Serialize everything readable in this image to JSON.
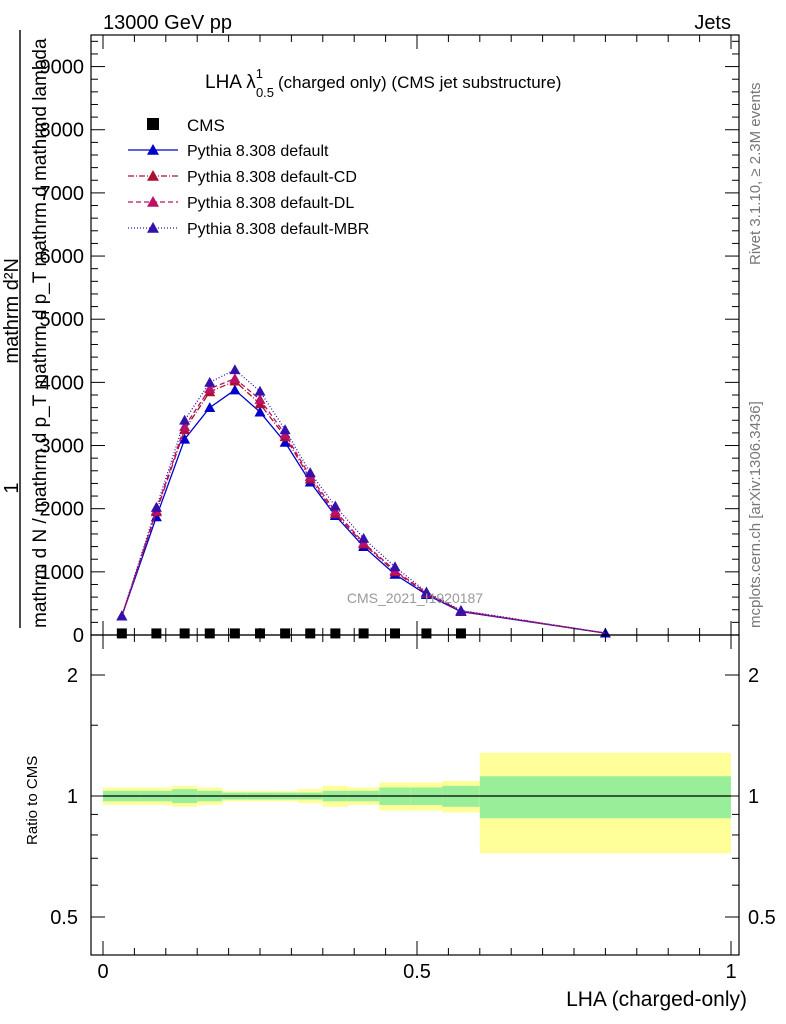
{
  "header": {
    "left": "13000 GeV pp",
    "right": "Jets"
  },
  "side_labels": {
    "rivet": "Rivet 3.1.10, ≥ 2.3M events",
    "mcplots": "mcplots.cern.ch [arXiv:1306.3436]"
  },
  "watermark": "CMS_2021_I1920187",
  "chart_data": [
    {
      "type": "line",
      "title": "LHA λ¹₀.₅ (charged only) (CMS jet substructure)",
      "title_parts": {
        "main": "LHA λ",
        "sup": "1",
        "sub": "0.5",
        "rest": "(charged only) (CMS jet substructure)"
      },
      "ylabel_num": "mathrm d²N",
      "ylabel_den": "mathrm d N / mathrm d p_T mathrm d p_T mathrm d lambda",
      "ylabel_one": "1",
      "ylabel_alt": "mathrm d N / mathrm d p_T mathrm d p_T mathrm d mathrmd lambda",
      "xlim": [
        0,
        1
      ],
      "ylim": [
        0,
        9500
      ],
      "y_ticks": [
        {
          "v": 0,
          "label": "0"
        },
        {
          "v": 1000,
          "label": "1000"
        },
        {
          "v": 2000,
          "label": "2000"
        },
        {
          "v": 3000,
          "label": "3000"
        },
        {
          "v": 4000,
          "label": "4000"
        },
        {
          "v": 5000,
          "label": "5000"
        },
        {
          "v": 6000,
          "label": "6000"
        },
        {
          "v": 7000,
          "label": "7000"
        },
        {
          "v": 8000,
          "label": "8000"
        },
        {
          "v": 9000,
          "label": "9000"
        }
      ],
      "legend_position": "top-left",
      "cms": {
        "name": "CMS",
        "x": [
          0.03,
          0.085,
          0.13,
          0.17,
          0.21,
          0.25,
          0.29,
          0.33,
          0.37,
          0.415,
          0.465,
          0.515,
          0.57
        ],
        "y": [
          25,
          25,
          25,
          25,
          25,
          25,
          25,
          25,
          25,
          25,
          25,
          25,
          25
        ]
      },
      "series": [
        {
          "name": "Pythia 8.308 default",
          "color": "#0000cc",
          "dash": "",
          "x": [
            0.03,
            0.085,
            0.13,
            0.17,
            0.21,
            0.25,
            0.29,
            0.33,
            0.37,
            0.415,
            0.465,
            0.515,
            0.57,
            0.8
          ],
          "y": [
            300,
            1870,
            3100,
            3600,
            3880,
            3530,
            3050,
            2420,
            1890,
            1400,
            960,
            640,
            370,
            30
          ]
        },
        {
          "name": "Pythia 8.308 default-CD",
          "color": "#aa1133",
          "dash": "6,2,1,2",
          "x": [
            0.03,
            0.085,
            0.13,
            0.17,
            0.21,
            0.25,
            0.29,
            0.33,
            0.37,
            0.415,
            0.465,
            0.515,
            0.57,
            0.8
          ],
          "y": [
            300,
            1950,
            3250,
            3850,
            4020,
            3660,
            3140,
            2470,
            1920,
            1440,
            1000,
            660,
            380,
            30
          ]
        },
        {
          "name": "Pythia 8.308 default-DL",
          "color": "#bb1166",
          "dash": "5,3",
          "x": [
            0.03,
            0.085,
            0.13,
            0.17,
            0.21,
            0.25,
            0.29,
            0.33,
            0.37,
            0.415,
            0.465,
            0.515,
            0.57,
            0.8
          ],
          "y": [
            300,
            1970,
            3300,
            3900,
            4060,
            3730,
            3180,
            2510,
            1960,
            1460,
            1020,
            670,
            380,
            30
          ]
        },
        {
          "name": "Pythia 8.308 default-MBR",
          "color": "#3311aa",
          "dash": "1,2",
          "x": [
            0.03,
            0.085,
            0.13,
            0.17,
            0.21,
            0.25,
            0.29,
            0.33,
            0.37,
            0.415,
            0.465,
            0.515,
            0.57,
            0.8
          ],
          "y": [
            300,
            2020,
            3400,
            4000,
            4200,
            3860,
            3250,
            2570,
            2040,
            1530,
            1080,
            680,
            390,
            30
          ]
        }
      ]
    },
    {
      "type": "area",
      "ylabel": "Ratio to CMS",
      "xlabel": "LHA (charged-only)",
      "xlim": [
        0,
        1
      ],
      "ylim": [
        0.375,
        2.25
      ],
      "x_ticks": [
        {
          "v": 0,
          "label": "0"
        },
        {
          "v": 0.5,
          "label": "0.5"
        },
        {
          "v": 1,
          "label": "1"
        }
      ],
      "y_ticks": [
        {
          "v": 0.5,
          "label": "0.5"
        },
        {
          "v": 1,
          "label": "1"
        },
        {
          "v": 2,
          "label": "2"
        }
      ],
      "bins": [
        {
          "x0": 0.0,
          "x1": 0.06,
          "inner": [
            0.97,
            1.03
          ],
          "outer": [
            0.95,
            1.05
          ]
        },
        {
          "x0": 0.06,
          "x1": 0.11,
          "inner": [
            0.97,
            1.03
          ],
          "outer": [
            0.95,
            1.05
          ]
        },
        {
          "x0": 0.11,
          "x1": 0.15,
          "inner": [
            0.96,
            1.04
          ],
          "outer": [
            0.94,
            1.06
          ]
        },
        {
          "x0": 0.15,
          "x1": 0.19,
          "inner": [
            0.97,
            1.03
          ],
          "outer": [
            0.95,
            1.05
          ]
        },
        {
          "x0": 0.19,
          "x1": 0.23,
          "inner": [
            0.98,
            1.02
          ],
          "outer": [
            0.97,
            1.03
          ]
        },
        {
          "x0": 0.23,
          "x1": 0.27,
          "inner": [
            0.98,
            1.02
          ],
          "outer": [
            0.97,
            1.03
          ]
        },
        {
          "x0": 0.27,
          "x1": 0.31,
          "inner": [
            0.98,
            1.02
          ],
          "outer": [
            0.97,
            1.03
          ]
        },
        {
          "x0": 0.31,
          "x1": 0.35,
          "inner": [
            0.98,
            1.02
          ],
          "outer": [
            0.96,
            1.04
          ]
        },
        {
          "x0": 0.35,
          "x1": 0.39,
          "inner": [
            0.97,
            1.03
          ],
          "outer": [
            0.94,
            1.06
          ]
        },
        {
          "x0": 0.39,
          "x1": 0.44,
          "inner": [
            0.97,
            1.03
          ],
          "outer": [
            0.95,
            1.05
          ]
        },
        {
          "x0": 0.44,
          "x1": 0.49,
          "inner": [
            0.95,
            1.05
          ],
          "outer": [
            0.92,
            1.08
          ]
        },
        {
          "x0": 0.49,
          "x1": 0.54,
          "inner": [
            0.95,
            1.05
          ],
          "outer": [
            0.92,
            1.08
          ]
        },
        {
          "x0": 0.54,
          "x1": 0.6,
          "inner": [
            0.94,
            1.06
          ],
          "outer": [
            0.91,
            1.09
          ]
        },
        {
          "x0": 0.6,
          "x1": 1.0,
          "inner": [
            0.88,
            1.12
          ],
          "outer": [
            0.72,
            1.28
          ]
        }
      ],
      "band_colors": {
        "inner": "#99ee99",
        "outer": "#ffff99"
      }
    }
  ]
}
